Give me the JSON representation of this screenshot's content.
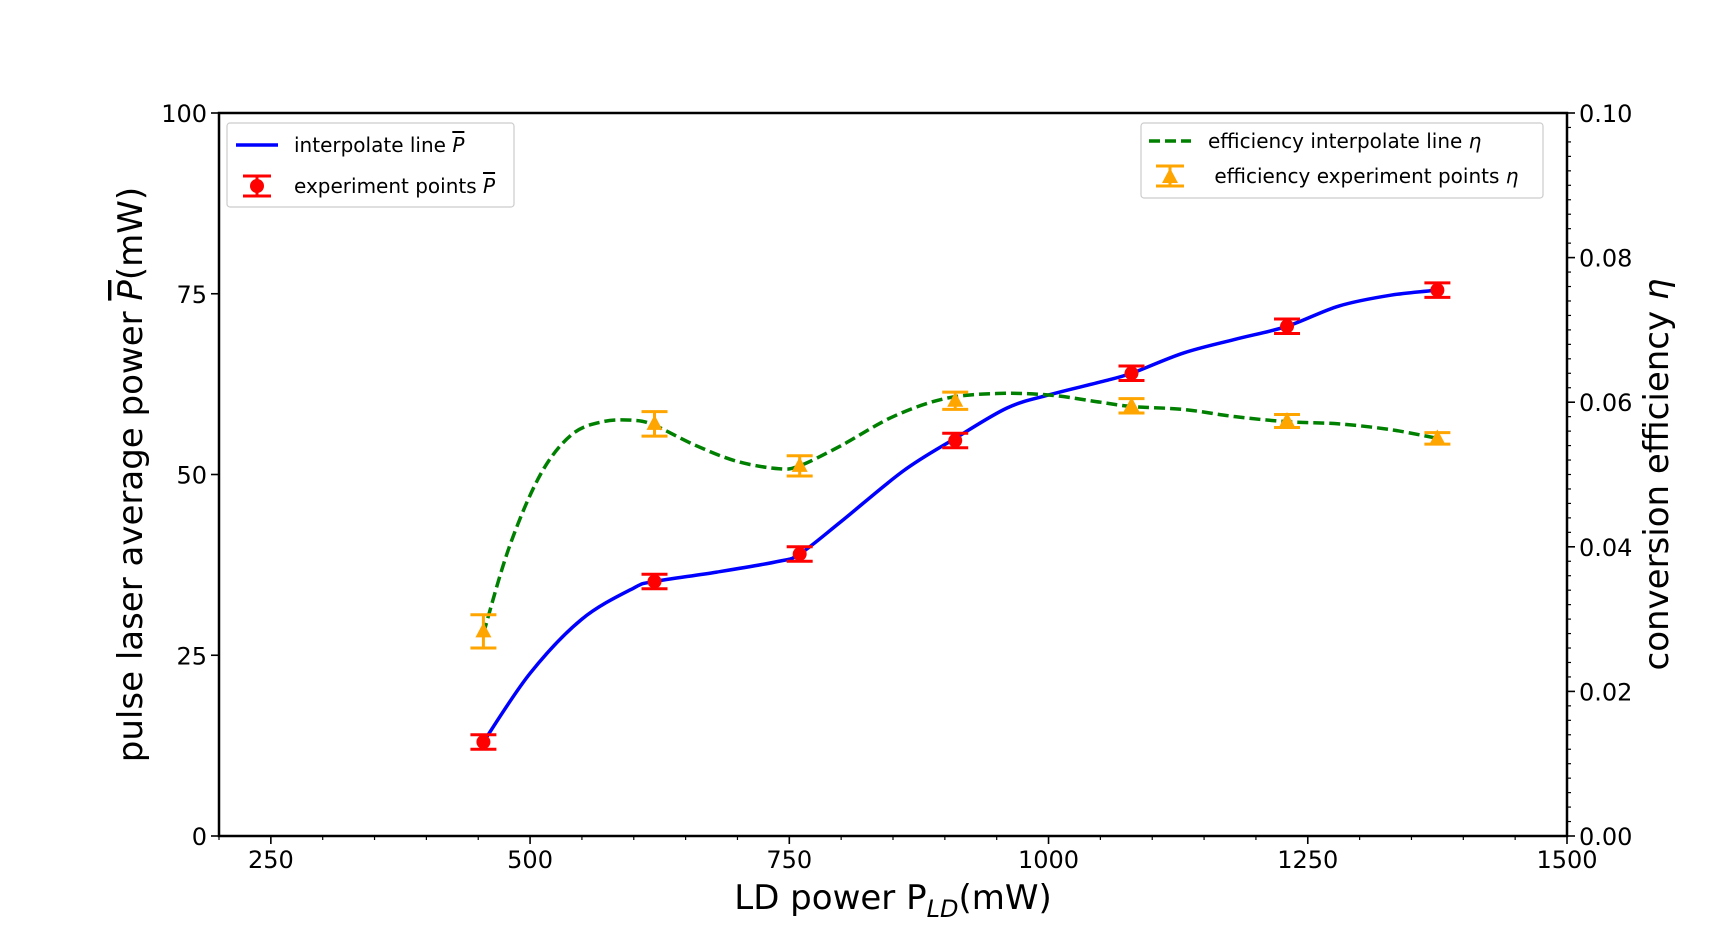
{
  "chart_data": {
    "type": "line",
    "xlabel": "LD power P",
    "xlabel_sub": "LD",
    "xlabel_unit": "(mW)",
    "ylabel_left_prefix": "pulse laser average power ",
    "ylabel_left_symbol": "P",
    "ylabel_left_unit": "(mW)",
    "ylabel_right_prefix": "conversion efficiency ",
    "ylabel_right_symbol": "η",
    "xlim": [
      200,
      1500
    ],
    "ylim_left": [
      0,
      100
    ],
    "ylim_right": [
      0,
      0.1
    ],
    "xticks": [
      250,
      500,
      750,
      1000,
      1250,
      1500
    ],
    "xtick_labels": [
      "250",
      "500",
      "750",
      "1000",
      "1250",
      "1500"
    ],
    "yticks_left": [
      0,
      25,
      50,
      75,
      100
    ],
    "ytick_labels_left": [
      "0",
      "25",
      "50",
      "75",
      "100"
    ],
    "yticks_right": [
      0,
      0.02,
      0.04,
      0.06,
      0.08,
      0.1
    ],
    "ytick_labels_right": [
      "0.00",
      "0.02",
      "0.04",
      "0.06",
      "0.08",
      "0.10"
    ],
    "grid": false,
    "legend_left_position": "upper-left",
    "legend_right_position": "upper-right",
    "series": [
      {
        "name": "interpolate line P̅",
        "legend_prefix": "interpolate line ",
        "legend_symbol": "P",
        "axis": "left",
        "style": "solid",
        "color": "#0000ff",
        "x": [
          455,
          500,
          550,
          600,
          620,
          680,
          740,
          760,
          800,
          860,
          910,
          960,
          1000,
          1050,
          1080,
          1130,
          1180,
          1230,
          1280,
          1330,
          1375
        ],
        "y": [
          13,
          22.5,
          30,
          34.3,
          35.2,
          36.5,
          38,
          39,
          43.5,
          50.5,
          55,
          59.2,
          61,
          62.8,
          64,
          66.8,
          68.7,
          70.5,
          73.3,
          74.8,
          75.5
        ]
      },
      {
        "name": "experiment points P̅",
        "legend_prefix": "experiment points ",
        "legend_symbol": "P",
        "axis": "left",
        "style": "errorbar-circle",
        "color": "#ff0000",
        "x": [
          455,
          620,
          760,
          910,
          1080,
          1230,
          1375
        ],
        "y": [
          13,
          35.2,
          39,
          54.7,
          64,
          70.5,
          75.5
        ],
        "yerr": [
          1,
          1,
          1,
          1,
          1,
          1,
          1
        ]
      },
      {
        "name": "efficiency interpolate line η",
        "legend_prefix": "efficiency interpolate line ",
        "legend_symbol": "η",
        "axis": "right",
        "style": "dashed",
        "color": "#008000",
        "x": [
          455,
          480,
          510,
          540,
          570,
          600,
          620,
          660,
          700,
          740,
          760,
          800,
          850,
          900,
          950,
          1000,
          1050,
          1080,
          1130,
          1180,
          1230,
          1280,
          1330,
          1375
        ],
        "y": [
          0.028,
          0.04,
          0.05,
          0.0555,
          0.0573,
          0.0575,
          0.0568,
          0.054,
          0.0518,
          0.0508,
          0.0512,
          0.054,
          0.058,
          0.0605,
          0.0612,
          0.061,
          0.06,
          0.0594,
          0.059,
          0.058,
          0.0573,
          0.057,
          0.0562,
          0.055
        ]
      },
      {
        "name": "efficiency experiment points η",
        "legend_prefix": " efficiency experiment points ",
        "legend_symbol": "η",
        "axis": "right",
        "style": "errorbar-triangle",
        "color": "#ffa500",
        "x": [
          455,
          620,
          760,
          910,
          1080,
          1230,
          1375
        ],
        "y": [
          0.0283,
          0.057,
          0.0512,
          0.0602,
          0.0595,
          0.0574,
          0.055
        ],
        "yerr": [
          0.0023,
          0.0017,
          0.0014,
          0.0012,
          0.001,
          0.0009,
          0.0008
        ]
      }
    ]
  }
}
